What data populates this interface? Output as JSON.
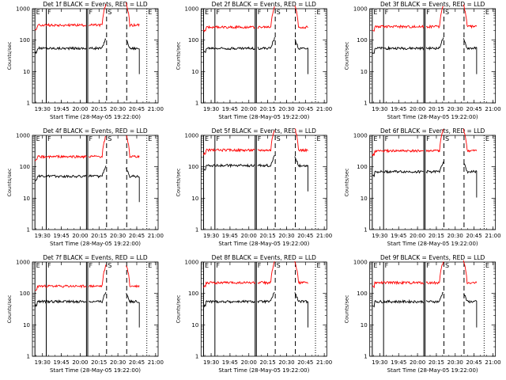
{
  "figure": {
    "common_xlabel": "Start Time (28-May-05 19:22:00)",
    "common_ylabel": "Counts/sec",
    "y_ticks": [
      "1",
      "10",
      "100",
      "1000"
    ],
    "x_ticks": [
      "19:30",
      "19:45",
      "20:00",
      "20:15",
      "20:30",
      "20:45",
      "21:00"
    ]
  },
  "chart_data": [
    {
      "type": "line",
      "title": "Det 1f BLACK = Events, RED = LLD",
      "yscale": "log",
      "ylim": [
        1,
        1000
      ],
      "xlabel": "Start Time (28-May-05 19:22:00)",
      "ylabel": "Counts/sec",
      "series": [
        {
          "color": "#000000",
          "level": 55,
          "spikes": true
        },
        {
          "color": "#ff0000",
          "level": 300,
          "spikes": true
        }
      ],
      "solid_markers": [
        "19:24",
        "19:33",
        "20:05",
        "20:06"
      ],
      "dashed_markers": [
        "20:21",
        "20:37"
      ],
      "dotted_markers": [
        "20:53"
      ],
      "markers_labels": [
        {
          "at": "19:24",
          "text": "E"
        },
        {
          "at": "19:33",
          "text": "F"
        },
        {
          "at": "20:06",
          "text": "F"
        },
        {
          "at": "20:21",
          "text": "S"
        },
        {
          "at": "20:53",
          "text": "E"
        }
      ]
    },
    {
      "type": "line",
      "title": "Det 2f BLACK = Events, RED = LLD",
      "yscale": "log",
      "ylim": [
        1,
        1000
      ],
      "xlabel": "Start Time (28-May-05 19:22:00)",
      "ylabel": "Counts/sec",
      "series": [
        {
          "color": "#000000",
          "level": 55,
          "spikes": true
        },
        {
          "color": "#ff0000",
          "level": 260,
          "spikes": true
        }
      ],
      "solid_markers": [
        "19:24",
        "19:33",
        "20:05",
        "20:06"
      ],
      "dashed_markers": [
        "20:21",
        "20:37"
      ],
      "dotted_markers": [
        "20:53"
      ],
      "markers_labels": [
        {
          "at": "19:24",
          "text": "E"
        },
        {
          "at": "19:33",
          "text": "F"
        },
        {
          "at": "20:06",
          "text": "F"
        },
        {
          "at": "20:21",
          "text": "S"
        },
        {
          "at": "20:53",
          "text": "E"
        }
      ]
    },
    {
      "type": "line",
      "title": "Det 3f BLACK = Events, RED = LLD",
      "yscale": "log",
      "ylim": [
        1,
        1000
      ],
      "xlabel": "Start Time (28-May-05 19:22:00)",
      "ylabel": "Counts/sec",
      "series": [
        {
          "color": "#000000",
          "level": 55,
          "spikes": true
        },
        {
          "color": "#ff0000",
          "level": 270,
          "spikes": true
        }
      ],
      "solid_markers": [
        "19:24",
        "19:33",
        "20:05",
        "20:06"
      ],
      "dashed_markers": [
        "20:21",
        "20:37"
      ],
      "dotted_markers": [
        "20:53"
      ],
      "markers_labels": [
        {
          "at": "19:24",
          "text": "E"
        },
        {
          "at": "19:33",
          "text": "F"
        },
        {
          "at": "20:06",
          "text": "F"
        },
        {
          "at": "20:21",
          "text": "S"
        },
        {
          "at": "20:53",
          "text": "E"
        }
      ]
    },
    {
      "type": "line",
      "title": "Det 4f BLACK = Events, RED = LLD",
      "yscale": "log",
      "ylim": [
        1,
        1000
      ],
      "xlabel": "Start Time (28-May-05 19:22:00)",
      "ylabel": "Counts/sec",
      "series": [
        {
          "color": "#000000",
          "level": 50,
          "spikes": true
        },
        {
          "color": "#ff0000",
          "level": 210,
          "spikes": true
        }
      ],
      "solid_markers": [
        "19:24",
        "19:33",
        "20:05",
        "20:06"
      ],
      "dashed_markers": [
        "20:21",
        "20:37"
      ],
      "dotted_markers": [
        "20:53"
      ],
      "markers_labels": [
        {
          "at": "19:24",
          "text": "E"
        },
        {
          "at": "19:33",
          "text": "F"
        },
        {
          "at": "20:06",
          "text": "F"
        },
        {
          "at": "20:21",
          "text": "S"
        },
        {
          "at": "20:53",
          "text": "E"
        }
      ]
    },
    {
      "type": "line",
      "title": "Det 5f BLACK = Events, RED = LLD",
      "yscale": "log",
      "ylim": [
        1,
        1000
      ],
      "xlabel": "Start Time (28-May-05 19:22:00)",
      "ylabel": "Counts/sec",
      "series": [
        {
          "color": "#000000",
          "level": 110,
          "spikes": true
        },
        {
          "color": "#ff0000",
          "level": 340,
          "spikes": true
        }
      ],
      "solid_markers": [
        "19:24",
        "19:33",
        "20:05",
        "20:06"
      ],
      "dashed_markers": [
        "20:21",
        "20:37"
      ],
      "dotted_markers": [
        "20:53"
      ],
      "markers_labels": [
        {
          "at": "19:24",
          "text": "E"
        },
        {
          "at": "19:33",
          "text": "F"
        },
        {
          "at": "20:06",
          "text": "F"
        },
        {
          "at": "20:21",
          "text": "S"
        },
        {
          "at": "20:53",
          "text": "E"
        }
      ]
    },
    {
      "type": "line",
      "title": "Det 6f BLACK = Events, RED = LLD",
      "yscale": "log",
      "ylim": [
        1,
        1000
      ],
      "xlabel": "Start Time (28-May-05 19:22:00)",
      "ylabel": "Counts/sec",
      "series": [
        {
          "color": "#000000",
          "level": 70,
          "spikes": true
        },
        {
          "color": "#ff0000",
          "level": 320,
          "spikes": true
        }
      ],
      "solid_markers": [
        "19:24",
        "19:33",
        "20:05",
        "20:06"
      ],
      "dashed_markers": [
        "20:21",
        "20:37"
      ],
      "dotted_markers": [
        "20:53"
      ],
      "markers_labels": [
        {
          "at": "19:24",
          "text": "E"
        },
        {
          "at": "19:33",
          "text": "F"
        },
        {
          "at": "20:06",
          "text": "F"
        },
        {
          "at": "20:21",
          "text": "S"
        },
        {
          "at": "20:53",
          "text": "E"
        }
      ]
    },
    {
      "type": "line",
      "title": "Det 7f BLACK = Events, RED = LLD",
      "yscale": "log",
      "ylim": [
        1,
        1000
      ],
      "xlabel": "Start Time (28-May-05 19:22:00)",
      "ylabel": "Counts/sec",
      "series": [
        {
          "color": "#000000",
          "level": 55,
          "spikes": true
        },
        {
          "color": "#ff0000",
          "level": 170,
          "spikes": true
        }
      ],
      "solid_markers": [
        "19:24",
        "19:33",
        "20:05",
        "20:06"
      ],
      "dashed_markers": [
        "20:21",
        "20:37"
      ],
      "dotted_markers": [
        "20:53"
      ],
      "markers_labels": [
        {
          "at": "19:24",
          "text": "E"
        },
        {
          "at": "19:33",
          "text": "F"
        },
        {
          "at": "20:06",
          "text": "F"
        },
        {
          "at": "20:21",
          "text": "S"
        },
        {
          "at": "20:53",
          "text": "E"
        }
      ]
    },
    {
      "type": "line",
      "title": "Det 8f BLACK = Events, RED = LLD",
      "yscale": "log",
      "ylim": [
        1,
        1000
      ],
      "xlabel": "Start Time (28-May-05 19:22:00)",
      "ylabel": "Counts/sec",
      "series": [
        {
          "color": "#000000",
          "level": 55,
          "spikes": true
        },
        {
          "color": "#ff0000",
          "level": 220,
          "spikes": true
        }
      ],
      "solid_markers": [
        "19:24",
        "19:33",
        "20:05",
        "20:06"
      ],
      "dashed_markers": [
        "20:21",
        "20:37"
      ],
      "dotted_markers": [
        "20:53"
      ],
      "markers_labels": [
        {
          "at": "19:24",
          "text": "E"
        },
        {
          "at": "19:33",
          "text": "F"
        },
        {
          "at": "20:06",
          "text": "F"
        },
        {
          "at": "20:21",
          "text": "S"
        },
        {
          "at": "20:53",
          "text": "E"
        }
      ]
    },
    {
      "type": "line",
      "title": "Det 9f BLACK = Events, RED = LLD",
      "yscale": "log",
      "ylim": [
        1,
        1000
      ],
      "xlabel": "Start Time (28-May-05 19:22:00)",
      "ylabel": "Counts/sec",
      "series": [
        {
          "color": "#000000",
          "level": 55,
          "spikes": true
        },
        {
          "color": "#ff0000",
          "level": 220,
          "spikes": true
        }
      ],
      "solid_markers": [
        "19:24",
        "19:33",
        "20:05",
        "20:06"
      ],
      "dashed_markers": [
        "20:21",
        "20:37"
      ],
      "dotted_markers": [
        "20:53"
      ],
      "markers_labels": [
        {
          "at": "19:24",
          "text": "E"
        },
        {
          "at": "19:33",
          "text": "F"
        },
        {
          "at": "20:06",
          "text": "F"
        },
        {
          "at": "20:21",
          "text": "S"
        },
        {
          "at": "20:53",
          "text": "E"
        }
      ]
    }
  ]
}
